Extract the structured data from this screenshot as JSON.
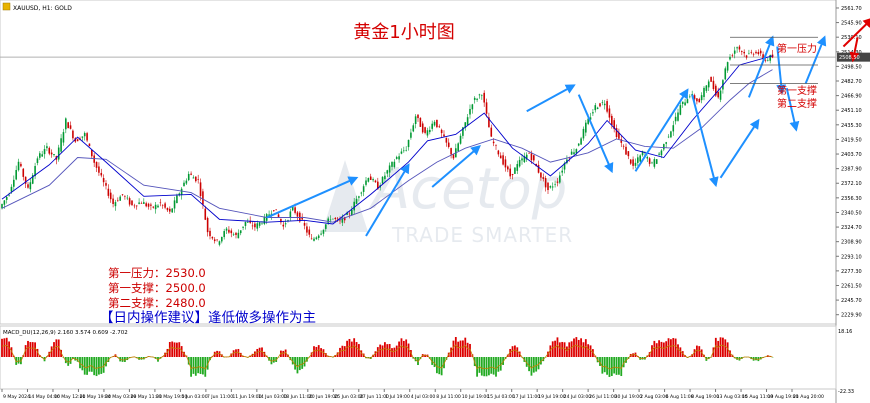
{
  "header": {
    "symbol_label": "XAUUSD, H1:  GOLD",
    "chart_title": "黄金1小时图"
  },
  "watermark": {
    "brand": "Acetop",
    "tagline": "TRADE SMARTER"
  },
  "annotations": {
    "resistance_1_label": "第一压力",
    "support_1_label": "第一支撑",
    "support_2_label": "第二支撑"
  },
  "levels_box": {
    "line_1": "第一压力：2530.0",
    "line_2": "第一支撑：2500.0",
    "line_3": "第二支撑：2480.0",
    "advice": "【日内操作建议】逢低做多操作为主"
  },
  "macd": {
    "label": "MACD_DU(12,26,9) 2.160 3.574 0.609 -2.702"
  },
  "colors": {
    "bull_candle": "#009933",
    "bear_candle": "#cc0000",
    "ma_fast": "#0000cc",
    "ma_slow": "#3333aa",
    "arrow_blue": "#1e90ff",
    "arrow_red": "#e00000",
    "title_red": "#d40000",
    "advice_blue": "#0000cc",
    "macd_pos": "#dd0000",
    "macd_neg": "#22aa22",
    "current_price_line": "#b0b0b0"
  },
  "chart_data": {
    "type": "candlestick",
    "title": "黄金1小时图",
    "y_ticks": [
      "2561.70",
      "2545.90",
      "2530.10",
      "2514.30",
      "2498.50",
      "2482.70",
      "2466.90",
      "2451.10",
      "2435.30",
      "2419.50",
      "2403.70",
      "2387.90",
      "2372.10",
      "2356.30",
      "2340.50",
      "2324.70",
      "2308.90",
      "2293.10",
      "2277.30",
      "2261.50",
      "2245.70",
      "2229.90"
    ],
    "ylim": [
      2222,
      2566
    ],
    "current_price": 2508.5,
    "levels": [
      {
        "name": "第一压力",
        "value": 2530.0
      },
      {
        "name": "第一支撑",
        "value": 2500.0
      },
      {
        "name": "第二支撑",
        "value": 2480.0
      }
    ],
    "x_ticks": [
      "9 May 2024",
      "14 May 04:00",
      "16 May 12:00",
      "21 May 19:00",
      "24 May 03:00",
      "29 May 11:00",
      "31 May 19:00",
      "5 Jun 03:00",
      "7 Jun 11:00",
      "11 Jun 19:00",
      "14 Jun 03:00",
      "18 Jun 11:00",
      "20 Jun 19:00",
      "25 Jun 03:00",
      "27 Jun 11:00",
      "1 Jul 19:00",
      "4 Jul 03:00",
      "8 Jul 11:00",
      "10 Jul 19:00",
      "15 Jul 03:00",
      "17 Jul 11:00",
      "19 Jul 19:00",
      "24 Jul 03:00",
      "26 Jul 11:00",
      "30 Jul 19:00",
      "2 Aug 03:00",
      "6 Aug 11:00",
      "8 Aug 19:00",
      "13 Aug 03:00",
      "15 Aug 11:00",
      "19 Aug 19:00",
      "21 Aug 20:00"
    ],
    "price_path": [
      [
        0,
        2345
      ],
      [
        2,
        2362
      ],
      [
        4,
        2395
      ],
      [
        6,
        2365
      ],
      [
        8,
        2400
      ],
      [
        10,
        2410
      ],
      [
        12,
        2398
      ],
      [
        14,
        2440
      ],
      [
        16,
        2418
      ],
      [
        18,
        2425
      ],
      [
        20,
        2395
      ],
      [
        22,
        2372
      ],
      [
        24,
        2350
      ],
      [
        26,
        2360
      ],
      [
        28,
        2348
      ],
      [
        30,
        2352
      ],
      [
        32,
        2345
      ],
      [
        34,
        2350
      ],
      [
        36,
        2340
      ],
      [
        38,
        2362
      ],
      [
        40,
        2382
      ],
      [
        42,
        2375
      ],
      [
        44,
        2320
      ],
      [
        46,
        2308
      ],
      [
        48,
        2322
      ],
      [
        50,
        2315
      ],
      [
        52,
        2330
      ],
      [
        54,
        2325
      ],
      [
        56,
        2333
      ],
      [
        58,
        2345
      ],
      [
        60,
        2325
      ],
      [
        62,
        2345
      ],
      [
        64,
        2330
      ],
      [
        66,
        2310
      ],
      [
        68,
        2320
      ],
      [
        70,
        2335
      ],
      [
        72,
        2330
      ],
      [
        74,
        2340
      ],
      [
        76,
        2360
      ],
      [
        78,
        2380
      ],
      [
        80,
        2368
      ],
      [
        82,
        2385
      ],
      [
        84,
        2400
      ],
      [
        86,
        2410
      ],
      [
        88,
        2445
      ],
      [
        90,
        2425
      ],
      [
        92,
        2440
      ],
      [
        94,
        2420
      ],
      [
        96,
        2400
      ],
      [
        98,
        2430
      ],
      [
        100,
        2460
      ],
      [
        102,
        2470
      ],
      [
        104,
        2420
      ],
      [
        106,
        2400
      ],
      [
        108,
        2380
      ],
      [
        110,
        2395
      ],
      [
        112,
        2405
      ],
      [
        114,
        2385
      ],
      [
        116,
        2365
      ],
      [
        118,
        2375
      ],
      [
        120,
        2400
      ],
      [
        122,
        2410
      ],
      [
        124,
        2435
      ],
      [
        126,
        2455
      ],
      [
        128,
        2460
      ],
      [
        130,
        2430
      ],
      [
        132,
        2410
      ],
      [
        134,
        2390
      ],
      [
        136,
        2405
      ],
      [
        138,
        2392
      ],
      [
        140,
        2408
      ],
      [
        142,
        2430
      ],
      [
        144,
        2455
      ],
      [
        146,
        2468
      ],
      [
        148,
        2460
      ],
      [
        150,
        2485
      ],
      [
        152,
        2465
      ],
      [
        154,
        2505
      ],
      [
        156,
        2520
      ],
      [
        158,
        2510
      ],
      [
        160,
        2515
      ],
      [
        162,
        2505
      ],
      [
        163,
        2508.5
      ]
    ],
    "ma_fast": [
      [
        0,
        2355
      ],
      [
        10,
        2392
      ],
      [
        16,
        2422
      ],
      [
        22,
        2395
      ],
      [
        30,
        2358
      ],
      [
        40,
        2360
      ],
      [
        46,
        2333
      ],
      [
        56,
        2330
      ],
      [
        64,
        2332
      ],
      [
        70,
        2328
      ],
      [
        78,
        2360
      ],
      [
        86,
        2395
      ],
      [
        90,
        2418
      ],
      [
        96,
        2425
      ],
      [
        102,
        2448
      ],
      [
        108,
        2410
      ],
      [
        116,
        2380
      ],
      [
        124,
        2415
      ],
      [
        128,
        2440
      ],
      [
        134,
        2408
      ],
      [
        140,
        2400
      ],
      [
        146,
        2440
      ],
      [
        152,
        2475
      ],
      [
        156,
        2500
      ],
      [
        163,
        2510
      ]
    ],
    "ma_slow": [
      [
        0,
        2345
      ],
      [
        10,
        2370
      ],
      [
        16,
        2400
      ],
      [
        22,
        2398
      ],
      [
        30,
        2370
      ],
      [
        40,
        2362
      ],
      [
        46,
        2345
      ],
      [
        56,
        2335
      ],
      [
        64,
        2335
      ],
      [
        70,
        2330
      ],
      [
        78,
        2345
      ],
      [
        86,
        2375
      ],
      [
        92,
        2395
      ],
      [
        98,
        2410
      ],
      [
        104,
        2420
      ],
      [
        110,
        2410
      ],
      [
        116,
        2395
      ],
      [
        124,
        2405
      ],
      [
        130,
        2420
      ],
      [
        136,
        2412
      ],
      [
        142,
        2410
      ],
      [
        148,
        2432
      ],
      [
        154,
        2462
      ],
      [
        158,
        2480
      ],
      [
        163,
        2495
      ]
    ],
    "blue_arrows": [
      {
        "from": [
          56,
          2335
        ],
        "to": [
          75,
          2378
        ]
      },
      {
        "from": [
          77,
          2315
        ],
        "to": [
          86,
          2392
        ]
      },
      {
        "from": [
          91,
          2368
        ],
        "to": [
          101,
          2412
        ]
      },
      {
        "from": [
          111,
          2450
        ],
        "to": [
          121,
          2478
        ]
      },
      {
        "from": [
          122,
          2468
        ],
        "to": [
          129,
          2385
        ]
      },
      {
        "from": [
          134,
          2385
        ],
        "to": [
          145,
          2473
        ]
      },
      {
        "from": [
          146,
          2468
        ],
        "to": [
          151,
          2370
        ]
      },
      {
        "from": [
          152,
          2378
        ],
        "to": [
          160,
          2440
        ]
      },
      {
        "from": [
          158,
          2465
        ],
        "to": [
          163,
          2530
        ]
      },
      {
        "from": [
          164,
          2520
        ],
        "to": [
          165,
          2470
        ]
      },
      {
        "from": [
          166,
          2475
        ],
        "to": [
          168,
          2430
        ]
      },
      {
        "from": [
          170,
          2480
        ],
        "to": [
          174,
          2530
        ]
      }
    ],
    "red_arrows": [
      {
        "from": [
          178,
          2520
        ],
        "to": [
          184,
          2550
        ]
      },
      {
        "from": [
          181,
          2530
        ],
        "to": [
          180,
          2505
        ]
      }
    ],
    "macd_hist_ylim": [
      -12,
      12
    ]
  }
}
